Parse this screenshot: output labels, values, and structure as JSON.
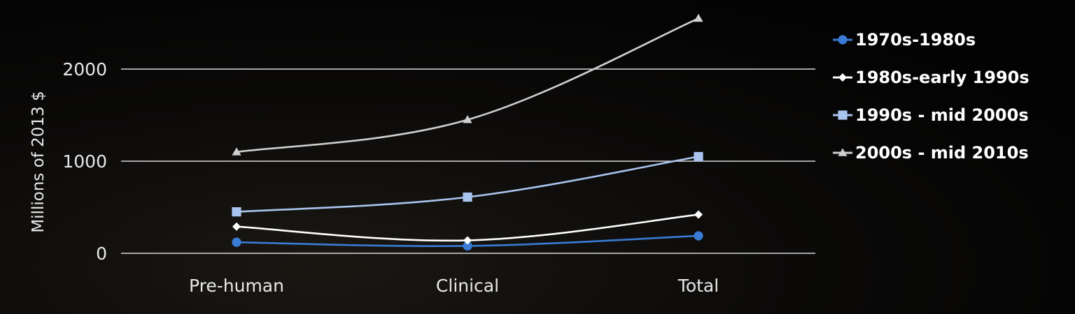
{
  "chart_data": {
    "type": "line",
    "categories": [
      "Pre-human",
      "Clinical",
      "Total"
    ],
    "ylabel": "Millions of 2013 $",
    "yticks": [
      0,
      1000,
      2000
    ],
    "ylim": [
      0,
      2650
    ],
    "grid": true,
    "legend_position": "right",
    "series": [
      {
        "name": "1970s-1980s",
        "values": [
          120,
          80,
          190
        ],
        "color": "#3a7bd5",
        "marker": "circle"
      },
      {
        "name": "1980s-early 1990s",
        "values": [
          290,
          140,
          420
        ],
        "color": "#ffffff",
        "marker": "diamond"
      },
      {
        "name": "1990s - mid 2000s",
        "values": [
          450,
          610,
          1050
        ],
        "color": "#a9c4ee",
        "marker": "square"
      },
      {
        "name": "2000s - mid 2010s",
        "values": [
          1100,
          1450,
          2550
        ],
        "color": "#cfcfcf",
        "marker": "triangle"
      }
    ]
  }
}
